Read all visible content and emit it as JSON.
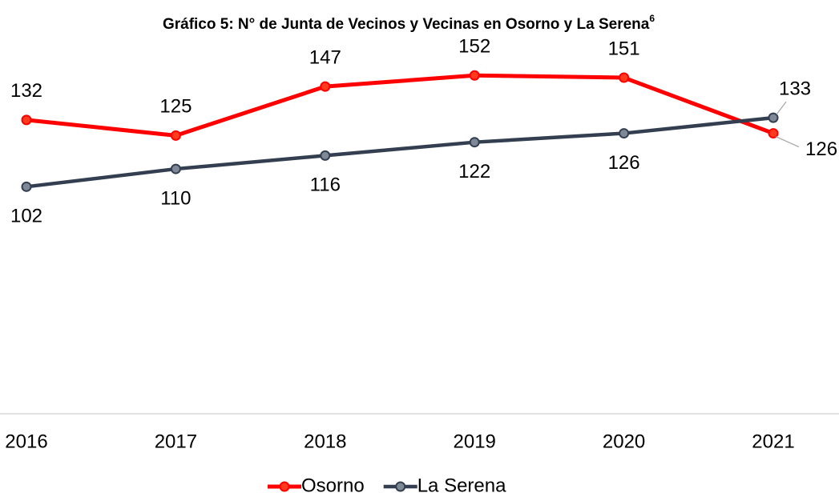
{
  "chart_data": {
    "type": "line",
    "title": "Gráfico 5: N° de Junta de Vecinos y Vecinas en Osorno y La Serena",
    "title_footnote": "6",
    "categories": [
      "2016",
      "2017",
      "2018",
      "2019",
      "2020",
      "2021"
    ],
    "series": [
      {
        "name": "Osorno",
        "color": "#ff0000",
        "values": [
          132,
          125,
          147,
          152,
          151,
          126
        ]
      },
      {
        "name": "La Serena",
        "color": "#333f50",
        "values": [
          102,
          110,
          116,
          122,
          126,
          133
        ]
      }
    ],
    "ylim": [
      0,
      160
    ],
    "legend": "bottom"
  }
}
